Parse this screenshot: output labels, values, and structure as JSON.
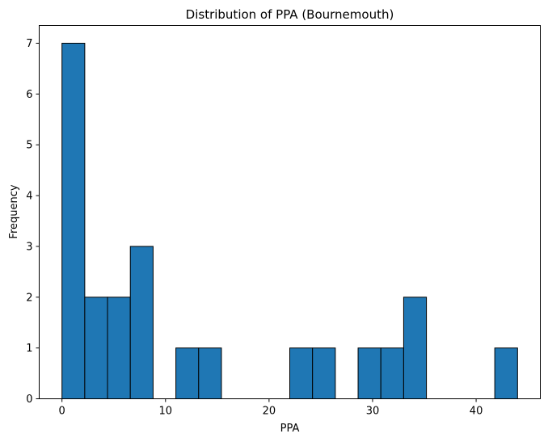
{
  "chart_data": {
    "type": "bar",
    "title": "Distribution of PPA (Bournemouth)",
    "xlabel": "PPA",
    "ylabel": "Frequency",
    "bin_min": 0,
    "bin_max": 44,
    "bins": 20,
    "values": [
      7,
      2,
      2,
      3,
      0,
      1,
      1,
      0,
      0,
      0,
      1,
      1,
      0,
      1,
      1,
      2,
      0,
      0,
      0,
      1
    ],
    "xlim": [
      -2.2,
      46.2
    ],
    "ylim": [
      0,
      7.35
    ],
    "xticks": [
      0,
      10,
      20,
      30,
      40
    ],
    "yticks": [
      0,
      1,
      2,
      3,
      4,
      5,
      6,
      7
    ],
    "bar_color": "#1f77b4",
    "edge_color": "#000000",
    "grid": false,
    "legend": "none"
  }
}
